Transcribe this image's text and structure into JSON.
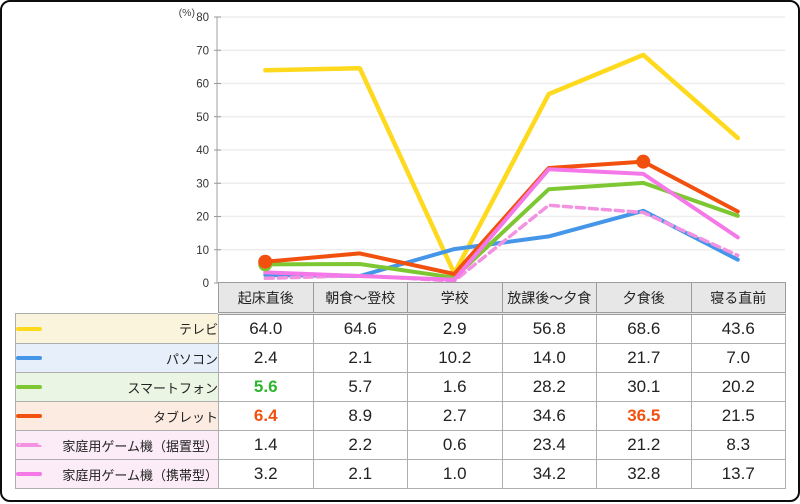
{
  "chart_data": {
    "type": "line",
    "title": "",
    "unit_label": "(%)",
    "categories": [
      "起床直後",
      "朝食〜登校",
      "学校",
      "放課後〜夕食",
      "夕食後",
      "寝る直前"
    ],
    "ylim": [
      0,
      80
    ],
    "ytick_step": 10,
    "grid": true,
    "legend_position": "table-left-column",
    "series": [
      {
        "name": "テレビ",
        "color": "#ffd91e",
        "line_style": "solid",
        "row_bg": "#fbf4dd",
        "values": [
          64.0,
          64.6,
          2.9,
          56.8,
          68.6,
          43.6
        ]
      },
      {
        "name": "パソコン",
        "color": "#4596e8",
        "line_style": "solid",
        "row_bg": "#e7effa",
        "values": [
          2.4,
          2.1,
          10.2,
          14.0,
          21.7,
          7.0
        ]
      },
      {
        "name": "スマートフォン",
        "color": "#7dc832",
        "line_style": "solid",
        "row_bg": "#eaf6e3",
        "values": [
          5.6,
          5.7,
          1.6,
          28.2,
          30.1,
          20.2
        ]
      },
      {
        "name": "タブレット",
        "color": "#f2500f",
        "line_style": "solid",
        "row_bg": "#fcebe1",
        "values": [
          6.4,
          8.9,
          2.7,
          34.6,
          36.5,
          21.5
        ]
      },
      {
        "name": "家庭用ゲーム機（据置型）",
        "color": "#f492e2",
        "line_style": "dashed",
        "row_bg": "#fbecf7",
        "values": [
          1.4,
          2.2,
          0.6,
          23.4,
          21.2,
          8.3
        ]
      },
      {
        "name": "家庭用ゲーム機（携帯型）",
        "color": "#f478e8",
        "line_style": "solid",
        "row_bg": "#fbecf7",
        "values": [
          3.2,
          2.1,
          1.0,
          34.2,
          32.8,
          13.7
        ]
      }
    ],
    "emphasis": [
      {
        "series": "スマートフォン",
        "category": "起床直後",
        "value": 5.6,
        "text_color": "#2eb42e"
      },
      {
        "series": "タブレット",
        "category": "起床直後",
        "value": 6.4,
        "text_color": "#f2500f"
      },
      {
        "series": "タブレット",
        "category": "夕食後",
        "value": 36.5,
        "text_color": "#f2500f"
      }
    ],
    "colors": {
      "grid_line": "#ededed",
      "axis_line": "#b0b0b0",
      "tick_mark": "#999999",
      "tick_label": "#333333",
      "header_bg": "#e7e7e7",
      "frame_border": "#0d0d0d"
    }
  }
}
